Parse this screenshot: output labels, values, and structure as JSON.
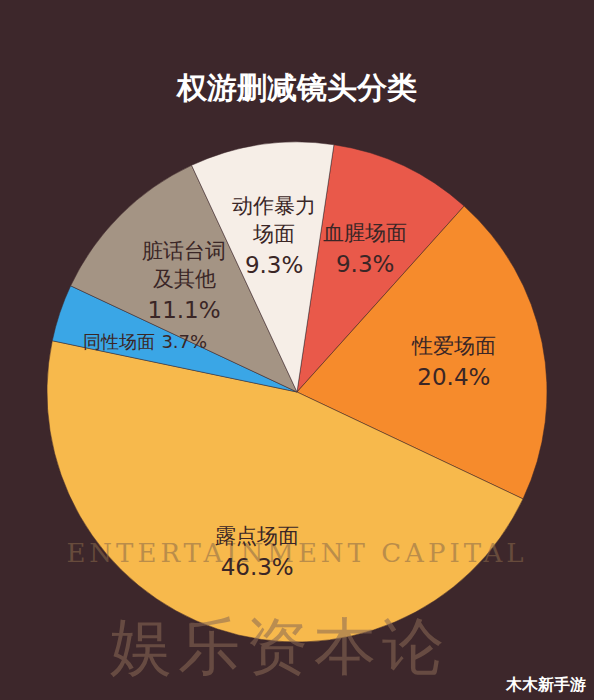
{
  "chart_data": {
    "type": "pie",
    "title": "权游删减镜头分类",
    "categories": [
      "血腥场面",
      "性爱场面",
      "露点场面",
      "同性场面",
      "脏话台词及其他",
      "动作暴力场面"
    ],
    "values": [
      9.3,
      20.4,
      46.3,
      3.7,
      11.1,
      9.3
    ],
    "value_labels": [
      "9.3%",
      "20.4%",
      "46.3%",
      "3.7%",
      "11.1%",
      "9.3%"
    ],
    "colors": [
      "#e9594a",
      "#f68b2c",
      "#f7b94c",
      "#3aa6e6",
      "#a49484",
      "#f6eee7"
    ],
    "data_labels": true,
    "annotations": [
      "ENTERTAINMENT CAPITAL",
      "娱乐资本论",
      "木木新手游"
    ]
  }
}
